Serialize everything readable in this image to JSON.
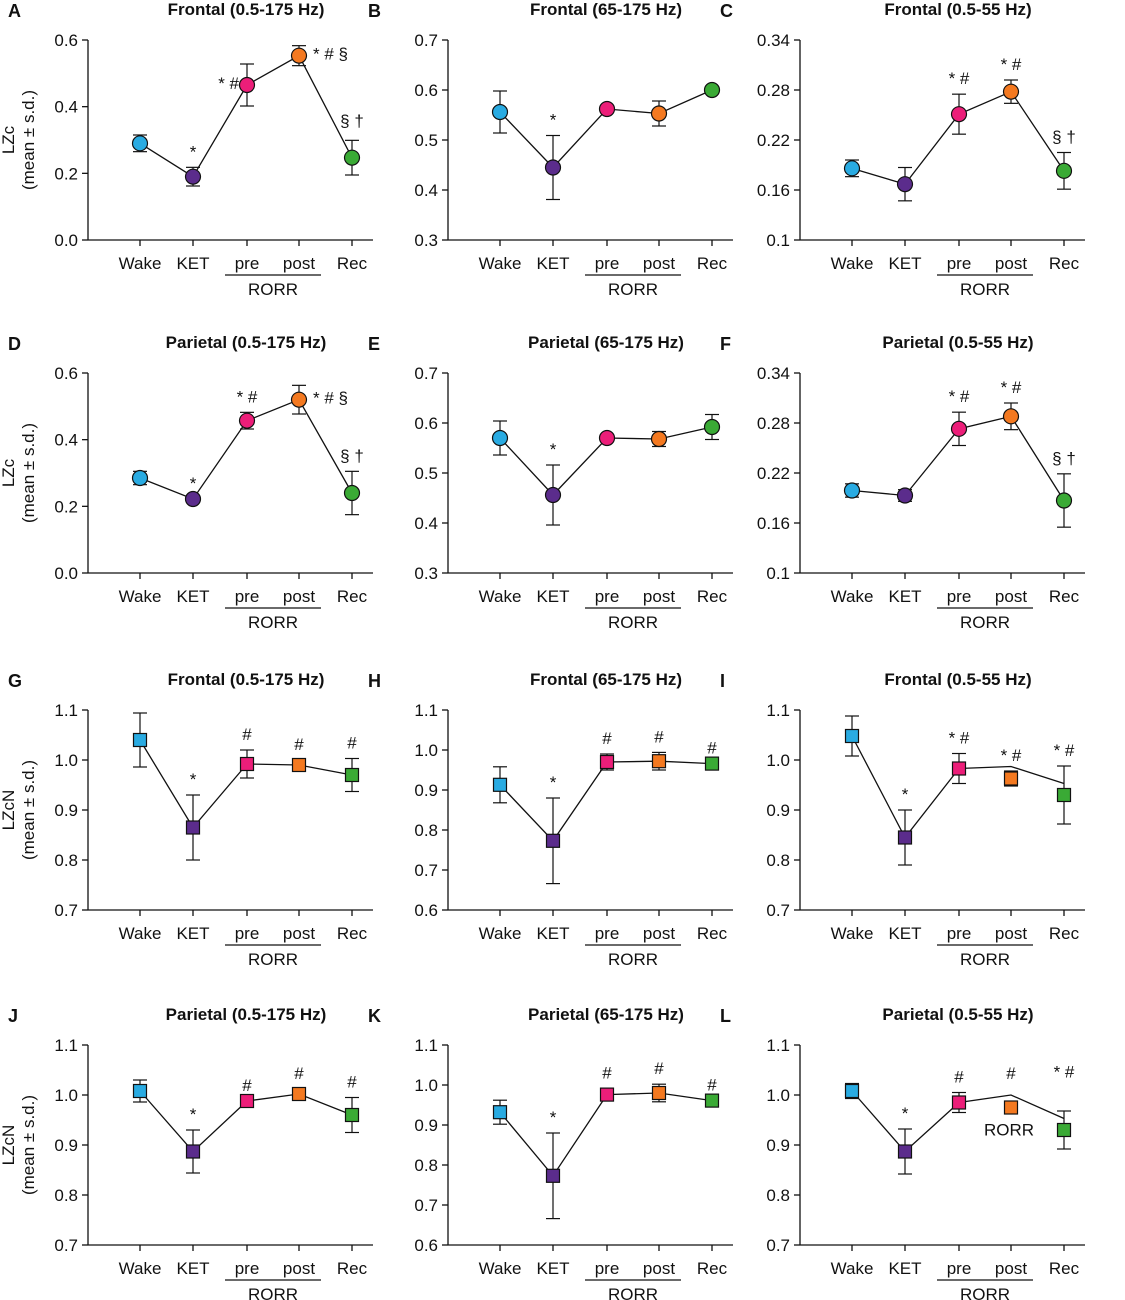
{
  "colors": {
    "Wake": "#29abe2",
    "KET": "#5b2c8c",
    "pre": "#ec1e79",
    "post": "#f47920",
    "Rec": "#3aaa35"
  },
  "chart_data": [
    {
      "id": "A",
      "type": "line",
      "title": "Frontal (0.5-175 Hz)",
      "ylabel": "LZc",
      "ylabel2": "(mean ± s.d.)",
      "marker": "circle",
      "categories": [
        "Wake",
        "KET",
        "pre",
        "post",
        "Rec"
      ],
      "group_label": "RORR",
      "ylim": [
        0,
        0.6
      ],
      "yticks": [
        "0.0",
        "0.2",
        "0.4",
        "0.6"
      ],
      "yticks_v": [
        0,
        0.2,
        0.4,
        0.6
      ],
      "values": [
        0.29,
        0.19,
        0.465,
        0.553,
        0.247
      ],
      "err": [
        0.025,
        0.028,
        0.063,
        0.03,
        0.052
      ],
      "annotations": [
        "",
        "*",
        "* #",
        "* # §",
        "§ †"
      ]
    },
    {
      "id": "B",
      "type": "line",
      "title": "Frontal (65-175 Hz)",
      "ylabel": "",
      "ylabel2": "",
      "marker": "circle",
      "categories": [
        "Wake",
        "KET",
        "pre",
        "post",
        "Rec"
      ],
      "group_label": "RORR",
      "ylim": [
        0.3,
        0.7
      ],
      "yticks": [
        "0.3",
        "0.4",
        "0.5",
        "0.6",
        "0.7"
      ],
      "yticks_v": [
        0.3,
        0.4,
        0.5,
        0.6,
        0.7
      ],
      "values": [
        0.556,
        0.445,
        0.562,
        0.553,
        0.6
      ],
      "err": [
        0.042,
        0.064,
        0.0,
        0.025,
        0.0
      ],
      "annotations": [
        "",
        "*",
        "",
        "",
        ""
      ]
    },
    {
      "id": "C",
      "type": "line",
      "title": "Frontal (0.5-55 Hz)",
      "ylabel": "",
      "ylabel2": "",
      "marker": "circle",
      "categories": [
        "Wake",
        "KET",
        "pre",
        "post",
        "Rec"
      ],
      "group_label": "RORR",
      "ylim": [
        0.1,
        0.34
      ],
      "yticks": [
        "0.1",
        "0.16",
        "0.22",
        "0.28",
        "0.34"
      ],
      "yticks_v": [
        0.1,
        0.16,
        0.22,
        0.28,
        0.34
      ],
      "values": [
        0.186,
        0.167,
        0.251,
        0.278,
        0.183
      ],
      "err": [
        0.01,
        0.02,
        0.024,
        0.014,
        0.022
      ],
      "annotations": [
        "",
        "",
        "* #",
        "* #",
        "§ †"
      ]
    },
    {
      "id": "D",
      "type": "line",
      "title": "Parietal (0.5-175 Hz)",
      "ylabel": "LZc",
      "ylabel2": "(mean ± s.d.)",
      "marker": "circle",
      "categories": [
        "Wake",
        "KET",
        "pre",
        "post",
        "Rec"
      ],
      "group_label": "RORR",
      "ylim": [
        0,
        0.6
      ],
      "yticks": [
        "0.0",
        "0.2",
        "0.4",
        "0.6"
      ],
      "yticks_v": [
        0,
        0.2,
        0.4,
        0.6
      ],
      "values": [
        0.285,
        0.222,
        0.457,
        0.52,
        0.24
      ],
      "err": [
        0.02,
        0.0,
        0.025,
        0.043,
        0.065
      ],
      "annotations": [
        "",
        "*",
        "* #",
        "* # §",
        "§ †"
      ]
    },
    {
      "id": "E",
      "type": "line",
      "title": "Parietal (65-175 Hz)",
      "ylabel": "",
      "ylabel2": "",
      "marker": "circle",
      "categories": [
        "Wake",
        "KET",
        "pre",
        "post",
        "Rec"
      ],
      "group_label": "RORR",
      "ylim": [
        0.3,
        0.7
      ],
      "yticks": [
        "0.3",
        "0.4",
        "0.5",
        "0.6",
        "0.7"
      ],
      "yticks_v": [
        0.3,
        0.4,
        0.5,
        0.6,
        0.7
      ],
      "values": [
        0.57,
        0.456,
        0.57,
        0.568,
        0.592
      ],
      "err": [
        0.034,
        0.06,
        0.0,
        0.015,
        0.025
      ],
      "annotations": [
        "",
        "*",
        "",
        "",
        ""
      ]
    },
    {
      "id": "F",
      "type": "line",
      "title": "Parietal (0.5-55 Hz)",
      "ylabel": "",
      "ylabel2": "",
      "marker": "circle",
      "categories": [
        "Wake",
        "KET",
        "pre",
        "post",
        "Rec"
      ],
      "group_label": "RORR",
      "ylim": [
        0.1,
        0.34
      ],
      "yticks": [
        "0.1",
        "0.16",
        "0.22",
        "0.28",
        "0.34"
      ],
      "yticks_v": [
        0.1,
        0.16,
        0.22,
        0.28,
        0.34
      ],
      "values": [
        0.199,
        0.193,
        0.273,
        0.288,
        0.187
      ],
      "err": [
        0.008,
        0.007,
        0.02,
        0.016,
        0.032
      ],
      "annotations": [
        "",
        "",
        "* #",
        "* #",
        "§ †"
      ]
    },
    {
      "id": "G",
      "type": "line",
      "title": "Frontal (0.5-175 Hz)",
      "ylabel": "LZcN",
      "ylabel2": "(mean ± s.d.)",
      "marker": "square",
      "categories": [
        "Wake",
        "KET",
        "pre",
        "post",
        "Rec"
      ],
      "group_label": "RORR",
      "ylim": [
        0.7,
        1.1
      ],
      "yticks": [
        "0.7",
        "0.8",
        "0.9",
        "1.0",
        "1.1"
      ],
      "yticks_v": [
        0.7,
        0.8,
        0.9,
        1.0,
        1.1
      ],
      "values": [
        1.04,
        0.865,
        0.992,
        0.99,
        0.97
      ],
      "err": [
        0.054,
        0.065,
        0.028,
        0.01,
        0.033
      ],
      "annotations": [
        "",
        "*",
        "#",
        "#",
        "#"
      ]
    },
    {
      "id": "H",
      "type": "line",
      "title": "Frontal (65-175 Hz)",
      "ylabel": "",
      "ylabel2": "",
      "marker": "square",
      "categories": [
        "Wake",
        "KET",
        "pre",
        "post",
        "Rec"
      ],
      "group_label": "RORR",
      "ylim": [
        0.6,
        1.1
      ],
      "yticks": [
        "0.6",
        "0.7",
        "0.8",
        "0.9",
        "1.0",
        "1.1"
      ],
      "yticks_v": [
        0.6,
        0.7,
        0.8,
        0.9,
        1.0,
        1.1
      ],
      "values": [
        0.913,
        0.773,
        0.97,
        0.972,
        0.966
      ],
      "err": [
        0.045,
        0.107,
        0.02,
        0.022,
        0.0
      ],
      "annotations": [
        "",
        "*",
        "#",
        "#",
        "#"
      ]
    },
    {
      "id": "I",
      "type": "line",
      "title": "Frontal (0.5-55 Hz)",
      "ylabel": "",
      "ylabel2": "",
      "marker": "square",
      "categories": [
        "Wake",
        "KET",
        "pre",
        "post",
        "Rec"
      ],
      "group_label": "RORR",
      "ylim": [
        0.7,
        1.1
      ],
      "yticks": [
        "0.7",
        "0.8",
        "0.9",
        "1.0",
        "1.1"
      ],
      "yticks_v": [
        0.7,
        0.8,
        0.9,
        1.0,
        1.1
      ],
      "values": [
        1.048,
        0.845,
        0.983,
        0.963,
        0.93
      ],
      "err": [
        0.04,
        0.055,
        0.03,
        0.015,
        0.058
      ],
      "line_values": [
        1.048,
        0.845,
        0.983,
        0.987,
        0.953
      ],
      "annotations": [
        "",
        "*",
        "* #",
        "* #",
        "* #"
      ]
    },
    {
      "id": "J",
      "type": "line",
      "title": "Parietal (0.5-175 Hz)",
      "ylabel": "LZcN",
      "ylabel2": "(mean ± s.d.)",
      "marker": "square",
      "categories": [
        "Wake",
        "KET",
        "pre",
        "post",
        "Rec"
      ],
      "group_label": "RORR",
      "ylim": [
        0.7,
        1.1
      ],
      "yticks": [
        "0.7",
        "0.8",
        "0.9",
        "1.0",
        "1.1"
      ],
      "yticks_v": [
        0.7,
        0.8,
        0.9,
        1.0,
        1.1
      ],
      "values": [
        1.008,
        0.887,
        0.988,
        1.002,
        0.96
      ],
      "err": [
        0.022,
        0.043,
        0.0,
        0.01,
        0.035
      ],
      "annotations": [
        "",
        "*",
        "#",
        "#",
        "#"
      ]
    },
    {
      "id": "K",
      "type": "line",
      "title": "Parietal (65-175 Hz)",
      "ylabel": "",
      "ylabel2": "",
      "marker": "square",
      "categories": [
        "Wake",
        "KET",
        "pre",
        "post",
        "Rec"
      ],
      "group_label": "RORR",
      "ylim": [
        0.6,
        1.1
      ],
      "yticks": [
        "0.6",
        "0.7",
        "0.8",
        "0.9",
        "1.0",
        "1.1"
      ],
      "yticks_v": [
        0.6,
        0.7,
        0.8,
        0.9,
        1.0,
        1.1
      ],
      "values": [
        0.932,
        0.773,
        0.976,
        0.98,
        0.961
      ],
      "err": [
        0.03,
        0.107,
        0.015,
        0.022,
        0.0
      ],
      "annotations": [
        "",
        "*",
        "#",
        "#",
        "#"
      ]
    },
    {
      "id": "L",
      "type": "line",
      "title": "Parietal (0.5-55 Hz)",
      "ylabel": "",
      "ylabel2": "",
      "marker": "square",
      "categories": [
        "Wake",
        "KET",
        "pre",
        "post",
        "Rec"
      ],
      "group_label": "RORR",
      "ylim": [
        0.7,
        1.1
      ],
      "yticks": [
        "0.7",
        "0.8",
        "0.9",
        "1.0",
        "1.1"
      ],
      "yticks_v": [
        0.7,
        0.8,
        0.9,
        1.0,
        1.1
      ],
      "values": [
        1.008,
        0.887,
        0.985,
        0.975,
        0.93
      ],
      "err": [
        0.015,
        0.045,
        0.02,
        0.0,
        0.038
      ],
      "line_values": [
        1.008,
        0.887,
        0.985,
        1.0,
        0.953
      ],
      "inner_label": "RORR",
      "annotations": [
        "",
        "*",
        "#",
        "#",
        "* #"
      ]
    }
  ]
}
